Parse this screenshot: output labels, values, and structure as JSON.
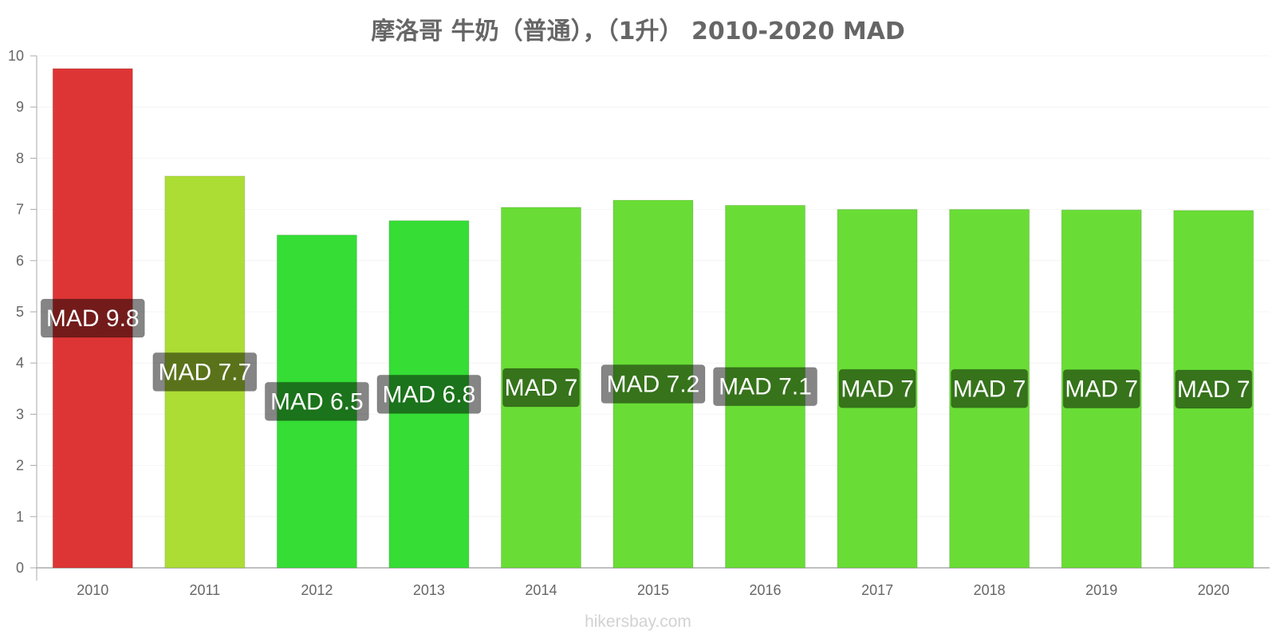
{
  "chart_data": {
    "type": "bar",
    "title": "摩洛哥 牛奶（普通），（1升） 2010-2020 MAD",
    "xlabel": "",
    "ylabel": "",
    "categories": [
      "2010",
      "2011",
      "2012",
      "2013",
      "2014",
      "2015",
      "2016",
      "2017",
      "2018",
      "2019",
      "2020"
    ],
    "values": [
      9.75,
      7.65,
      6.5,
      6.78,
      7.04,
      7.18,
      7.08,
      7.0,
      7.0,
      6.99,
      6.98
    ],
    "data_labels": [
      "MAD 9.8",
      "MAD 7.7",
      "MAD 6.5",
      "MAD 6.8",
      "MAD 7",
      "MAD 7.2",
      "MAD 7.1",
      "MAD 7",
      "MAD 7",
      "MAD 7",
      "MAD 7"
    ],
    "bar_colors": [
      "#dd3535",
      "#acdd35",
      "#35dd35",
      "#35dd35",
      "#69dd35",
      "#69dd35",
      "#69dd35",
      "#69dd35",
      "#69dd35",
      "#69dd35",
      "#69dd35"
    ],
    "ylim": [
      0,
      10
    ],
    "yticks": [
      "0",
      "1",
      "2",
      "3",
      "4",
      "5",
      "6",
      "7",
      "8",
      "9",
      "10"
    ],
    "grid": true,
    "legend": "none"
  },
  "watermark": "hikersbay.com"
}
